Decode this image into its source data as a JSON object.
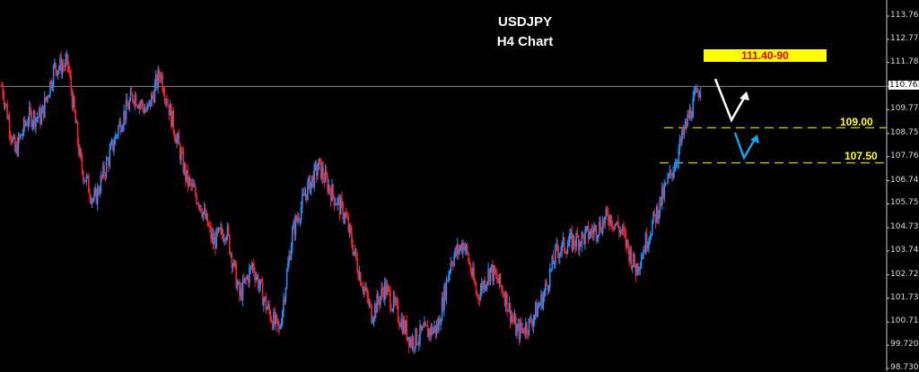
{
  "chart_data": {
    "type": "candlestick",
    "title": "USDJPY",
    "subtitle": "H4 Chart",
    "ylim": [
      98.73,
      113.76
    ],
    "yticks": [
      113.76,
      112.77,
      111.78,
      110.763,
      109.77,
      108.75,
      107.76,
      106.74,
      105.75,
      104.73,
      103.74,
      102.72,
      101.73,
      100.71,
      99.72,
      98.73
    ],
    "ytick_labels": [
      "113.760",
      "112.770",
      "111.780",
      "110.763",
      "109.770",
      "108.750",
      "107.760",
      "106.740",
      "105.750",
      "104.730",
      "103.740",
      "102.720",
      "101.730",
      "100.710",
      "99.720",
      "98.730"
    ],
    "current_price": "110.763",
    "grid": false,
    "colors": {
      "background": "#000000",
      "up": "#1e90ff",
      "down": "#ff2020",
      "level": "#b5b500",
      "current": "#888888"
    },
    "price_path": [
      110.81,
      107.94,
      109.47,
      109.47,
      111.58,
      111.7,
      107.36,
      105.83,
      107.55,
      109.28,
      110.43,
      109.66,
      111.38,
      109.09,
      106.79,
      105.83,
      104.11,
      104.68,
      101.81,
      103.15,
      101.42,
      100.27,
      104.49,
      106.21,
      107.36,
      106.21,
      105.25,
      102.96,
      101.04,
      102.19,
      101.04,
      99.89,
      100.27,
      100.46,
      103.34,
      104.11,
      101.81,
      102.96,
      102.0,
      100.27,
      100.65,
      101.81,
      103.72,
      104.11,
      104.3,
      104.68,
      105.25,
      104.49,
      102.96,
      104.49,
      106.02,
      107.55,
      109.47,
      111.0
    ],
    "annotations": {
      "target_zone": "111.40-90",
      "support_1": "109.00",
      "support_2": "107.50"
    },
    "support_levels": [
      109.0,
      107.5
    ]
  }
}
